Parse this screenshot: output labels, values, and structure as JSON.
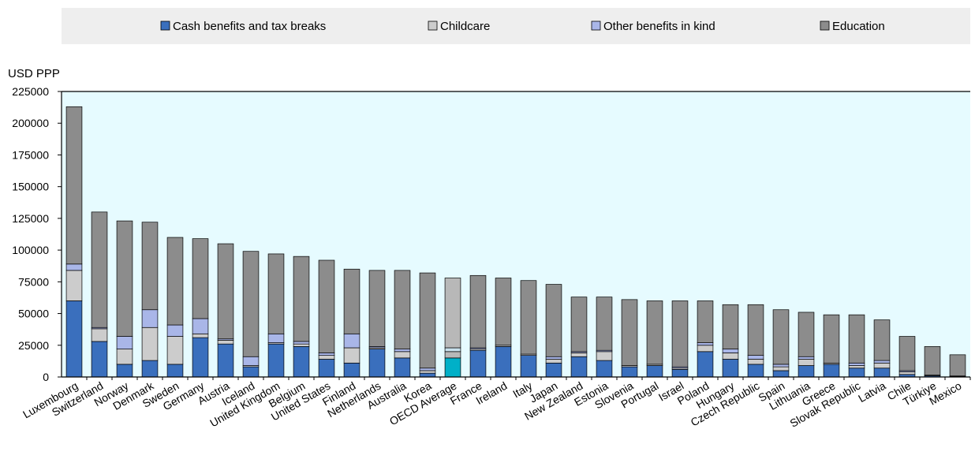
{
  "chart_data": {
    "type": "bar",
    "stacked": true,
    "ylabel": "USD PPP",
    "ylim": [
      0,
      225000
    ],
    "yticks": [
      0,
      25000,
      50000,
      75000,
      100000,
      125000,
      150000,
      175000,
      200000,
      225000
    ],
    "ytick_labels": [
      "0",
      "25000",
      "50000",
      "75000",
      "100000",
      "125000",
      "150000",
      "175000",
      "200000",
      "225000"
    ],
    "grid": false,
    "legend_position": "top",
    "plot_background": "#e6fbff",
    "legend_background": "#eeeeee",
    "highlight_category": "OECD Average",
    "highlight_colors": [
      "#00b0c8",
      "#b8b8b8",
      "#c8e0ec",
      "#b8b8b8"
    ],
    "categories": [
      "Luxembourg",
      "Switzerland",
      "Norway",
      "Denmark",
      "Sweden",
      "Germany",
      "Austria",
      "Iceland",
      "United Kingdom",
      "Belgium",
      "United States",
      "Finland",
      "Netherlands",
      "Australia",
      "Korea",
      "OECD Average",
      "France",
      "Ireland",
      "Italy",
      "Japan",
      "New Zealand",
      "Estonia",
      "Slovenia",
      "Portugal",
      "Israel",
      "Poland",
      "Hungary",
      "Czech Republic",
      "Spain",
      "Lithuania",
      "Greece",
      "Slovak Republic",
      "Latvia",
      "Chile",
      "Türkiye",
      "Mexico"
    ],
    "series": [
      {
        "name": "Cash benefits and tax breaks",
        "color": "#3a6fbd",
        "values": [
          60000,
          28000,
          10000,
          13000,
          10000,
          31000,
          26000,
          8000,
          26000,
          24000,
          14000,
          11000,
          22000,
          15000,
          3000,
          15000,
          21000,
          24000,
          17000,
          11000,
          16000,
          13000,
          8000,
          9000,
          6000,
          20000,
          14000,
          10000,
          5000,
          9000,
          10000,
          7000,
          7000,
          2000,
          1000,
          500
        ]
      },
      {
        "name": "Childcare",
        "color": "#cccccc",
        "values": [
          24000,
          10000,
          12000,
          26000,
          22000,
          3000,
          3000,
          1000,
          1000,
          2000,
          3000,
          12000,
          1000,
          5000,
          2000,
          5000,
          1000,
          1000,
          1000,
          3000,
          3000,
          7000,
          1000,
          1000,
          1000,
          5000,
          5000,
          4000,
          3000,
          5000,
          1000,
          2000,
          4000,
          2000,
          500,
          300
        ]
      },
      {
        "name": "Other benefits in kind",
        "color": "#a9b6e8",
        "values": [
          5000,
          1000,
          10000,
          14000,
          9000,
          12000,
          1000,
          7000,
          7000,
          2000,
          2000,
          11000,
          1000,
          2000,
          2000,
          3000,
          1000,
          0,
          0,
          2000,
          1000,
          1000,
          0,
          0,
          1000,
          2000,
          3000,
          3000,
          2000,
          2000,
          0,
          2000,
          2000,
          1000,
          0,
          0
        ]
      },
      {
        "name": "Education",
        "color": "#8c8c8c",
        "values": [
          124000,
          91000,
          91000,
          69000,
          69000,
          63000,
          75000,
          83000,
          63000,
          67000,
          73000,
          51000,
          60000,
          62000,
          75000,
          55000,
          57000,
          53000,
          58000,
          57000,
          43000,
          42000,
          52000,
          50000,
          52000,
          33000,
          35000,
          40000,
          43000,
          35000,
          38000,
          38000,
          32000,
          27000,
          22500,
          16700
        ]
      }
    ]
  }
}
